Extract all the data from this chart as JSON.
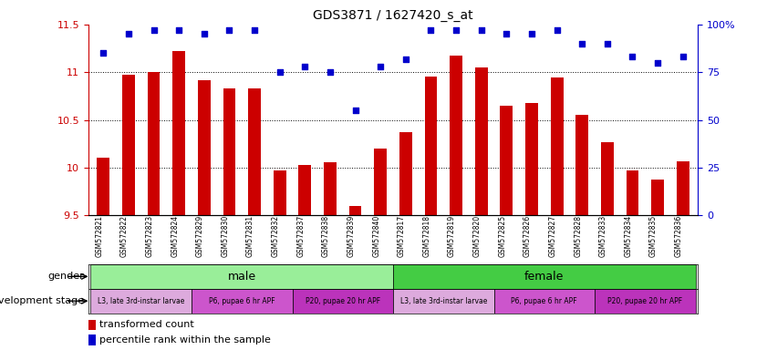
{
  "title": "GDS3871 / 1627420_s_at",
  "samples": [
    "GSM572821",
    "GSM572822",
    "GSM572823",
    "GSM572824",
    "GSM572829",
    "GSM572830",
    "GSM572831",
    "GSM572832",
    "GSM572837",
    "GSM572838",
    "GSM572839",
    "GSM572840",
    "GSM572817",
    "GSM572818",
    "GSM572819",
    "GSM572820",
    "GSM572825",
    "GSM572826",
    "GSM572827",
    "GSM572828",
    "GSM572833",
    "GSM572834",
    "GSM572835",
    "GSM572836"
  ],
  "bar_values": [
    10.1,
    10.97,
    11.0,
    11.22,
    10.92,
    10.83,
    10.83,
    9.97,
    10.03,
    10.06,
    9.6,
    10.2,
    10.37,
    10.95,
    11.17,
    11.05,
    10.65,
    10.68,
    10.94,
    10.55,
    10.27,
    9.97,
    9.87,
    10.07
  ],
  "scatter_values": [
    85,
    95,
    97,
    97,
    95,
    97,
    97,
    75,
    78,
    75,
    55,
    78,
    82,
    97,
    97,
    97,
    95,
    95,
    97,
    90,
    90,
    83,
    80,
    83
  ],
  "ylim": [
    9.5,
    11.5
  ],
  "y2lim": [
    0,
    100
  ],
  "yticks": [
    9.5,
    10.0,
    10.5,
    11.0,
    11.5
  ],
  "y2ticks": [
    0,
    25,
    50,
    75,
    100
  ],
  "bar_color": "#cc0000",
  "scatter_color": "#0000cc",
  "gender_male_color": "#99ee99",
  "gender_female_color": "#44cc44",
  "dev_colors": {
    "L3, late 3rd-instar larvae": "#ddaadd",
    "P6, pupae 6 hr APF": "#cc55cc",
    "P20, pupae 20 hr APF": "#bb33bb"
  },
  "gender_row": [
    {
      "label": "male",
      "start": 0,
      "end": 12
    },
    {
      "label": "female",
      "start": 12,
      "end": 24
    }
  ],
  "dev_row": [
    {
      "label": "L3, late 3rd-instar larvae",
      "start": 0,
      "end": 4
    },
    {
      "label": "P6, pupae 6 hr APF",
      "start": 4,
      "end": 8
    },
    {
      "label": "P20, pupae 20 hr APF",
      "start": 8,
      "end": 12
    },
    {
      "label": "L3, late 3rd-instar larvae",
      "start": 12,
      "end": 16
    },
    {
      "label": "P6, pupae 6 hr APF",
      "start": 16,
      "end": 20
    },
    {
      "label": "P20, pupae 20 hr APF",
      "start": 20,
      "end": 24
    }
  ],
  "legend_bar_label": "transformed count",
  "legend_scatter_label": "percentile rank within the sample",
  "gender_label": "gender",
  "dev_label": "development stage",
  "grid_lines": [
    10.0,
    10.5,
    11.0
  ]
}
